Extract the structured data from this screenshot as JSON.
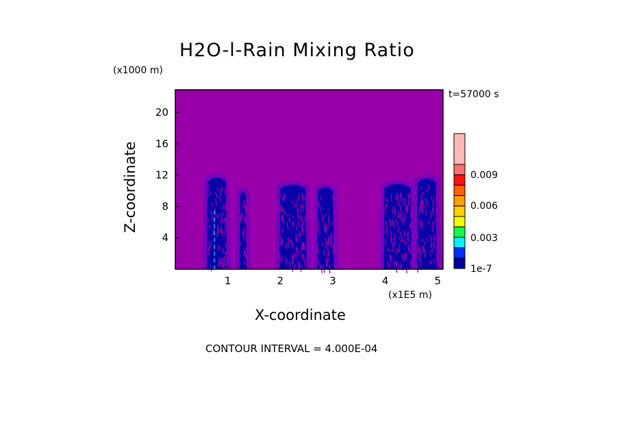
{
  "chart_data": {
    "type": "heatmap",
    "title": "H2O-l-Rain Mixing Ratio",
    "xlabel": "X-coordinate",
    "ylabel": "Z-coordinate",
    "x_unit": "(x1E5 m)",
    "y_unit": "(x1000 m)",
    "time_label": "t=57000 s",
    "footer": "CONTOUR INTERVAL = 4.000E-04",
    "xlim": [
      0,
      5.1
    ],
    "ylim": [
      0,
      22.9
    ],
    "x_ticks": [
      "1",
      "2",
      "3",
      "4",
      "5"
    ],
    "x_tick_values": [
      1,
      2,
      3,
      4,
      5
    ],
    "y_ticks": [
      "4",
      "8",
      "12",
      "16",
      "20"
    ],
    "y_tick_values": [
      4,
      8,
      12,
      16,
      20
    ],
    "background_color": "#9900aa",
    "halo_color": "#7a00bc",
    "core_color": "#0a00a8",
    "rain_columns": [
      {
        "x_left": 0.6,
        "x_right": 0.98,
        "top": 12.4
      },
      {
        "x_left": 1.22,
        "x_right": 1.36,
        "top": 10.6
      },
      {
        "x_left": 1.98,
        "x_right": 2.5,
        "top": 11.5
      },
      {
        "x_left": 2.7,
        "x_right": 3.02,
        "top": 11.2
      },
      {
        "x_left": 3.97,
        "x_right": 4.5,
        "top": 11.6
      },
      {
        "x_left": 4.6,
        "x_right": 4.98,
        "top": 12.3
      }
    ],
    "colorbar": {
      "labels": [
        "0.009",
        "0.006",
        "0.003",
        "1e-7"
      ],
      "label_values": [
        0.009,
        0.006,
        0.003,
        1e-07
      ],
      "colors_top_to_bottom": [
        "#ffb8b8",
        "#ff7070",
        "#ff1010",
        "#ff6000",
        "#ffa000",
        "#ffd000",
        "#f0ff00",
        "#10ff50",
        "#00f0ff",
        "#0030ff",
        "#0000a0"
      ]
    }
  }
}
